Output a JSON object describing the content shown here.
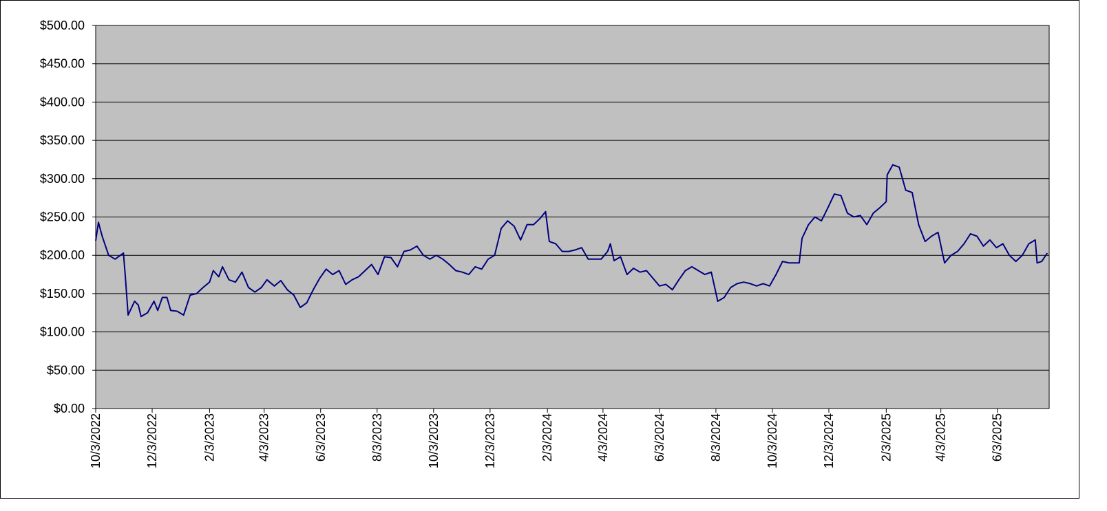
{
  "chart_data": {
    "type": "line",
    "color": "#000080",
    "grid": true,
    "ylim": [
      0,
      500
    ],
    "yticks": [
      {
        "value": 0,
        "label": "$0.00"
      },
      {
        "value": 50,
        "label": "$50.00"
      },
      {
        "value": 100,
        "label": "$100.00"
      },
      {
        "value": 150,
        "label": "$150.00"
      },
      {
        "value": 200,
        "label": "$200.00"
      },
      {
        "value": 250,
        "label": "$250.00"
      },
      {
        "value": 300,
        "label": "$300.00"
      },
      {
        "value": 350,
        "label": "$350.00"
      },
      {
        "value": 400,
        "label": "$400.00"
      },
      {
        "value": 450,
        "label": "$450.00"
      },
      {
        "value": 500,
        "label": "$500.00"
      }
    ],
    "xlim": [
      "10/3/2022",
      "7/29/2025"
    ],
    "xticks": [
      "10/3/2022",
      "12/3/2022",
      "2/3/2023",
      "4/3/2023",
      "6/3/2023",
      "8/3/2023",
      "10/3/2023",
      "12/3/2023",
      "2/3/2024",
      "4/3/2024",
      "6/3/2024",
      "8/3/2024",
      "10/3/2024",
      "12/3/2024",
      "2/3/2025",
      "4/3/2025",
      "6/3/2025"
    ],
    "x": [
      "10/3/2022",
      "10/6/2022",
      "10/10/2022",
      "10/17/2022",
      "10/24/2022",
      "11/2/2022",
      "11/4/2022",
      "11/7/2022",
      "11/14/2022",
      "11/18/2022",
      "11/21/2022",
      "11/28/2022",
      "12/5/2022",
      "12/9/2022",
      "12/14/2022",
      "12/19/2022",
      "12/23/2022",
      "12/30/2022",
      "1/6/2023",
      "1/13/2023",
      "1/20/2023",
      "1/27/2023",
      "2/3/2023",
      "2/7/2023",
      "2/13/2023",
      "2/17/2023",
      "2/24/2023",
      "3/3/2023",
      "3/10/2023",
      "3/17/2023",
      "3/24/2023",
      "3/31/2023",
      "4/6/2023",
      "4/14/2023",
      "4/21/2023",
      "4/28/2023",
      "5/5/2023",
      "5/12/2023",
      "5/19/2023",
      "5/26/2023",
      "6/2/2023",
      "6/9/2023",
      "6/16/2023",
      "6/23/2023",
      "6/30/2023",
      "7/7/2023",
      "7/14/2023",
      "7/21/2023",
      "7/28/2023",
      "8/4/2023",
      "8/11/2023",
      "8/18/2023",
      "8/25/2023",
      "9/1/2023",
      "9/8/2023",
      "9/15/2023",
      "9/22/2023",
      "9/29/2023",
      "10/6/2023",
      "10/13/2023",
      "10/20/2023",
      "10/27/2023",
      "11/3/2023",
      "11/10/2023",
      "11/17/2023",
      "11/24/2023",
      "12/1/2023",
      "12/8/2023",
      "12/15/2023",
      "12/22/2023",
      "12/29/2023",
      "1/5/2024",
      "1/12/2024",
      "1/19/2024",
      "1/26/2024",
      "2/1/2024",
      "2/5/2024",
      "2/12/2024",
      "2/19/2024",
      "2/26/2024",
      "3/4/2024",
      "3/11/2024",
      "3/18/2024",
      "3/25/2024",
      "4/1/2024",
      "4/8/2024",
      "4/11/2024",
      "4/15/2024",
      "4/22/2024",
      "4/29/2024",
      "5/6/2024",
      "5/13/2024",
      "5/20/2024",
      "5/27/2024",
      "6/3/2024",
      "6/10/2024",
      "6/17/2024",
      "6/24/2024",
      "7/1/2024",
      "7/8/2024",
      "7/15/2024",
      "7/22/2024",
      "7/29/2024",
      "8/5/2024",
      "8/12/2024",
      "8/19/2024",
      "8/26/2024",
      "9/2/2024",
      "9/9/2024",
      "9/16/2024",
      "9/23/2024",
      "9/30/2024",
      "10/7/2024",
      "10/14/2024",
      "10/21/2024",
      "10/28/2024",
      "11/1/2024",
      "11/4/2024",
      "11/11/2024",
      "11/18/2024",
      "11/25/2024",
      "12/2/2024",
      "12/9/2024",
      "12/16/2024",
      "12/23/2024",
      "12/30/2024",
      "1/6/2025",
      "1/13/2025",
      "1/20/2025",
      "1/27/2025",
      "2/3/2025",
      "2/4/2025",
      "2/10/2025",
      "2/17/2025",
      "2/24/2025",
      "3/3/2025",
      "3/10/2025",
      "3/17/2025",
      "3/24/2025",
      "3/31/2025",
      "4/7/2025",
      "4/14/2025",
      "4/21/2025",
      "4/28/2025",
      "5/5/2025",
      "5/12/2025",
      "5/19/2025",
      "5/26/2025",
      "6/2/2025",
      "6/9/2025",
      "6/16/2025",
      "6/23/2025",
      "6/30/2025",
      "7/7/2025",
      "7/14/2025",
      "7/16/2025",
      "7/21/2025",
      "7/27/2025"
    ],
    "values": [
      219,
      243,
      225,
      200,
      195,
      203,
      173,
      122,
      140,
      135,
      120,
      125,
      140,
      128,
      145,
      145,
      128,
      127,
      122,
      148,
      150,
      158,
      165,
      180,
      172,
      185,
      168,
      165,
      178,
      158,
      152,
      158,
      168,
      160,
      167,
      155,
      148,
      132,
      138,
      155,
      170,
      182,
      175,
      180,
      162,
      168,
      172,
      180,
      188,
      175,
      198,
      197,
      185,
      205,
      207,
      212,
      200,
      195,
      200,
      195,
      188,
      180,
      178,
      175,
      185,
      182,
      195,
      200,
      235,
      245,
      238,
      220,
      240,
      240,
      248,
      257,
      218,
      215,
      205,
      205,
      207,
      210,
      195,
      195,
      195,
      205,
      215,
      193,
      198,
      175,
      183,
      178,
      180,
      170,
      160,
      162,
      155,
      168,
      180,
      185,
      180,
      175,
      178,
      140,
      145,
      158,
      163,
      165,
      163,
      160,
      163,
      160,
      175,
      192,
      190,
      190,
      190,
      222,
      240,
      250,
      245,
      262,
      280,
      278,
      255,
      250,
      252,
      240,
      255,
      262,
      270,
      305,
      318,
      315,
      285,
      282,
      240,
      218,
      225,
      230,
      190,
      200,
      205,
      215,
      228,
      225,
      212,
      220,
      210,
      215,
      200,
      192,
      200,
      215,
      220,
      190,
      192,
      203
    ]
  }
}
